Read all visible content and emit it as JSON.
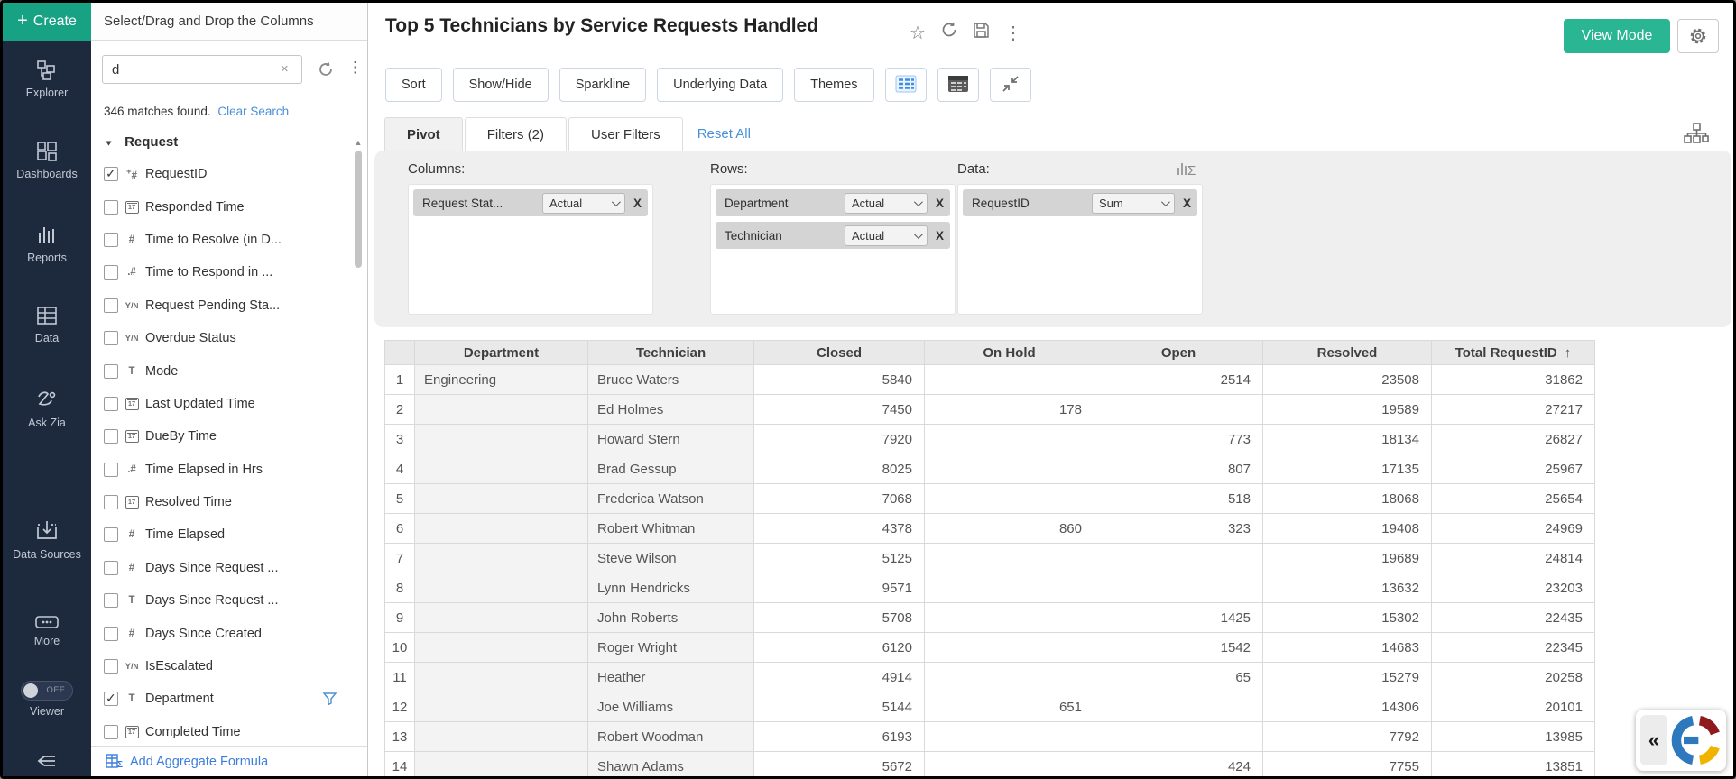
{
  "sidebar": {
    "create_label": "Create",
    "items": [
      {
        "label": "Explorer",
        "icon": "explorer-icon"
      },
      {
        "label": "Dashboards",
        "icon": "dashboards-icon"
      },
      {
        "label": "Reports",
        "icon": "reports-icon"
      },
      {
        "label": "Data",
        "icon": "data-icon"
      },
      {
        "label": "Ask Zia",
        "icon": "ask-zia-icon"
      },
      {
        "label": "Data Sources",
        "icon": "data-sources-icon"
      },
      {
        "label": "More",
        "icon": "more-icon"
      }
    ],
    "viewer": {
      "label": "Viewer",
      "toggle_state": "OFF"
    }
  },
  "field_panel": {
    "header": "Select/Drag and Drop the Columns",
    "search": {
      "value": "d",
      "clear_icon": "x-icon",
      "refresh_icon": "refresh-icon",
      "menu_icon": "kebab-icon"
    },
    "matches_text": "346 matches found.",
    "clear_search_label": "Clear Search",
    "section_label": "Request",
    "fields": [
      {
        "name": "RequestID",
        "type": "autonumber",
        "checked": true,
        "filtered": false
      },
      {
        "name": "Responded Time",
        "type": "date",
        "checked": false,
        "filtered": false
      },
      {
        "name": "Time to Resolve (in D...",
        "type": "number",
        "checked": false,
        "filtered": false
      },
      {
        "name": "Time to Respond in ...",
        "type": "decimal",
        "checked": false,
        "filtered": false
      },
      {
        "name": "Request Pending Sta...",
        "type": "boolean",
        "checked": false,
        "filtered": false
      },
      {
        "name": "Overdue Status",
        "type": "boolean",
        "checked": false,
        "filtered": false
      },
      {
        "name": "Mode",
        "type": "text",
        "checked": false,
        "filtered": false
      },
      {
        "name": "Last Updated Time",
        "type": "date",
        "checked": false,
        "filtered": false
      },
      {
        "name": "DueBy Time",
        "type": "date",
        "checked": false,
        "filtered": false
      },
      {
        "name": "Time Elapsed in Hrs",
        "type": "decimal",
        "checked": false,
        "filtered": false
      },
      {
        "name": "Resolved Time",
        "type": "date",
        "checked": false,
        "filtered": false
      },
      {
        "name": "Time Elapsed",
        "type": "number",
        "checked": false,
        "filtered": false
      },
      {
        "name": "Days Since Request ...",
        "type": "number",
        "checked": false,
        "filtered": false
      },
      {
        "name": "Days Since Request ...",
        "type": "text",
        "checked": false,
        "filtered": false
      },
      {
        "name": "Days Since Created",
        "type": "number",
        "checked": false,
        "filtered": false
      },
      {
        "name": "IsEscalated",
        "type": "boolean",
        "checked": false,
        "filtered": false
      },
      {
        "name": "Department",
        "type": "text",
        "checked": true,
        "filtered": true
      },
      {
        "name": "Completed Time",
        "type": "date",
        "checked": false,
        "filtered": false
      }
    ],
    "add_aggregate_label": "Add Aggregate Formula"
  },
  "report": {
    "title": "Top 5 Technicians by Service Requests Handled",
    "title_icons": [
      "star-icon",
      "refresh-icon",
      "save-icon",
      "kebab-icon"
    ],
    "view_mode_label": "View Mode",
    "toolbar_buttons": [
      "Sort",
      "Show/Hide",
      "Sparkline",
      "Underlying Data",
      "Themes"
    ],
    "toolbar_icon_buttons": [
      "compact-table-icon",
      "dark-table-icon",
      "collapse-arrows-icon"
    ],
    "tabs": [
      {
        "label": "Pivot",
        "active": true
      },
      {
        "label": "Filters  (2)",
        "active": false
      },
      {
        "label": "User Filters",
        "active": false
      }
    ],
    "reset_all_label": "Reset All",
    "pivot_config": {
      "columns_label": "Columns:",
      "rows_label": "Rows:",
      "data_label": "Data:",
      "columns_chips": [
        {
          "field": "Request Stat...",
          "agg": "Actual"
        }
      ],
      "rows_chips": [
        {
          "field": "Department",
          "agg": "Actual"
        },
        {
          "field": "Technician",
          "agg": "Actual"
        }
      ],
      "data_chips": [
        {
          "field": "RequestID",
          "agg": "Sum"
        }
      ]
    }
  },
  "table": {
    "headers": [
      "Department",
      "Technician",
      "Closed",
      "On Hold",
      "Open",
      "Resolved",
      "Total RequestID"
    ],
    "sorted_by": "Total RequestID",
    "sort_indicator": "↑",
    "rows": [
      {
        "n": "1",
        "department": "Engineering",
        "technician": "Bruce Waters",
        "closed": "5840",
        "on_hold": "",
        "open": "2514",
        "resolved": "23508",
        "total": "31862"
      },
      {
        "n": "2",
        "department": "",
        "technician": "Ed Holmes",
        "closed": "7450",
        "on_hold": "178",
        "open": "",
        "resolved": "19589",
        "total": "27217"
      },
      {
        "n": "3",
        "department": "",
        "technician": "Howard Stern",
        "closed": "7920",
        "on_hold": "",
        "open": "773",
        "resolved": "18134",
        "total": "26827"
      },
      {
        "n": "4",
        "department": "",
        "technician": "Brad Gessup",
        "closed": "8025",
        "on_hold": "",
        "open": "807",
        "resolved": "17135",
        "total": "25967"
      },
      {
        "n": "5",
        "department": "",
        "technician": "Frederica Watson",
        "closed": "7068",
        "on_hold": "",
        "open": "518",
        "resolved": "18068",
        "total": "25654"
      },
      {
        "n": "6",
        "department": "",
        "technician": "Robert Whitman",
        "closed": "4378",
        "on_hold": "860",
        "open": "323",
        "resolved": "19408",
        "total": "24969"
      },
      {
        "n": "7",
        "department": "",
        "technician": "Steve Wilson",
        "closed": "5125",
        "on_hold": "",
        "open": "",
        "resolved": "19689",
        "total": "24814"
      },
      {
        "n": "8",
        "department": "",
        "technician": "Lynn Hendricks",
        "closed": "9571",
        "on_hold": "",
        "open": "",
        "resolved": "13632",
        "total": "23203"
      },
      {
        "n": "9",
        "department": "",
        "technician": "John Roberts",
        "closed": "5708",
        "on_hold": "",
        "open": "1425",
        "resolved": "15302",
        "total": "22435"
      },
      {
        "n": "10",
        "department": "",
        "technician": "Roger Wright",
        "closed": "6120",
        "on_hold": "",
        "open": "1542",
        "resolved": "14683",
        "total": "22345"
      },
      {
        "n": "11",
        "department": "",
        "technician": "Heather",
        "closed": "4914",
        "on_hold": "",
        "open": "65",
        "resolved": "15279",
        "total": "20258"
      },
      {
        "n": "12",
        "department": "",
        "technician": "Joe Williams",
        "closed": "5144",
        "on_hold": "651",
        "open": "",
        "resolved": "14306",
        "total": "20101"
      },
      {
        "n": "13",
        "department": "",
        "technician": "Robert Woodman",
        "closed": "6193",
        "on_hold": "",
        "open": "",
        "resolved": "7792",
        "total": "13985"
      },
      {
        "n": "14",
        "department": "",
        "technician": "Shawn Adams",
        "closed": "5672",
        "on_hold": "",
        "open": "424",
        "resolved": "7755",
        "total": "13851"
      }
    ]
  },
  "colors": {
    "create_green": "#16a283",
    "view_mode_green": "#2ab593",
    "sidebar_bg": "#1d2a3d",
    "link_blue": "#4a90d9",
    "panel_gray": "#efefef",
    "logo_blue": "#2e79bd",
    "logo_red": "#8f1a1c",
    "logo_yellow": "#f0b400"
  }
}
